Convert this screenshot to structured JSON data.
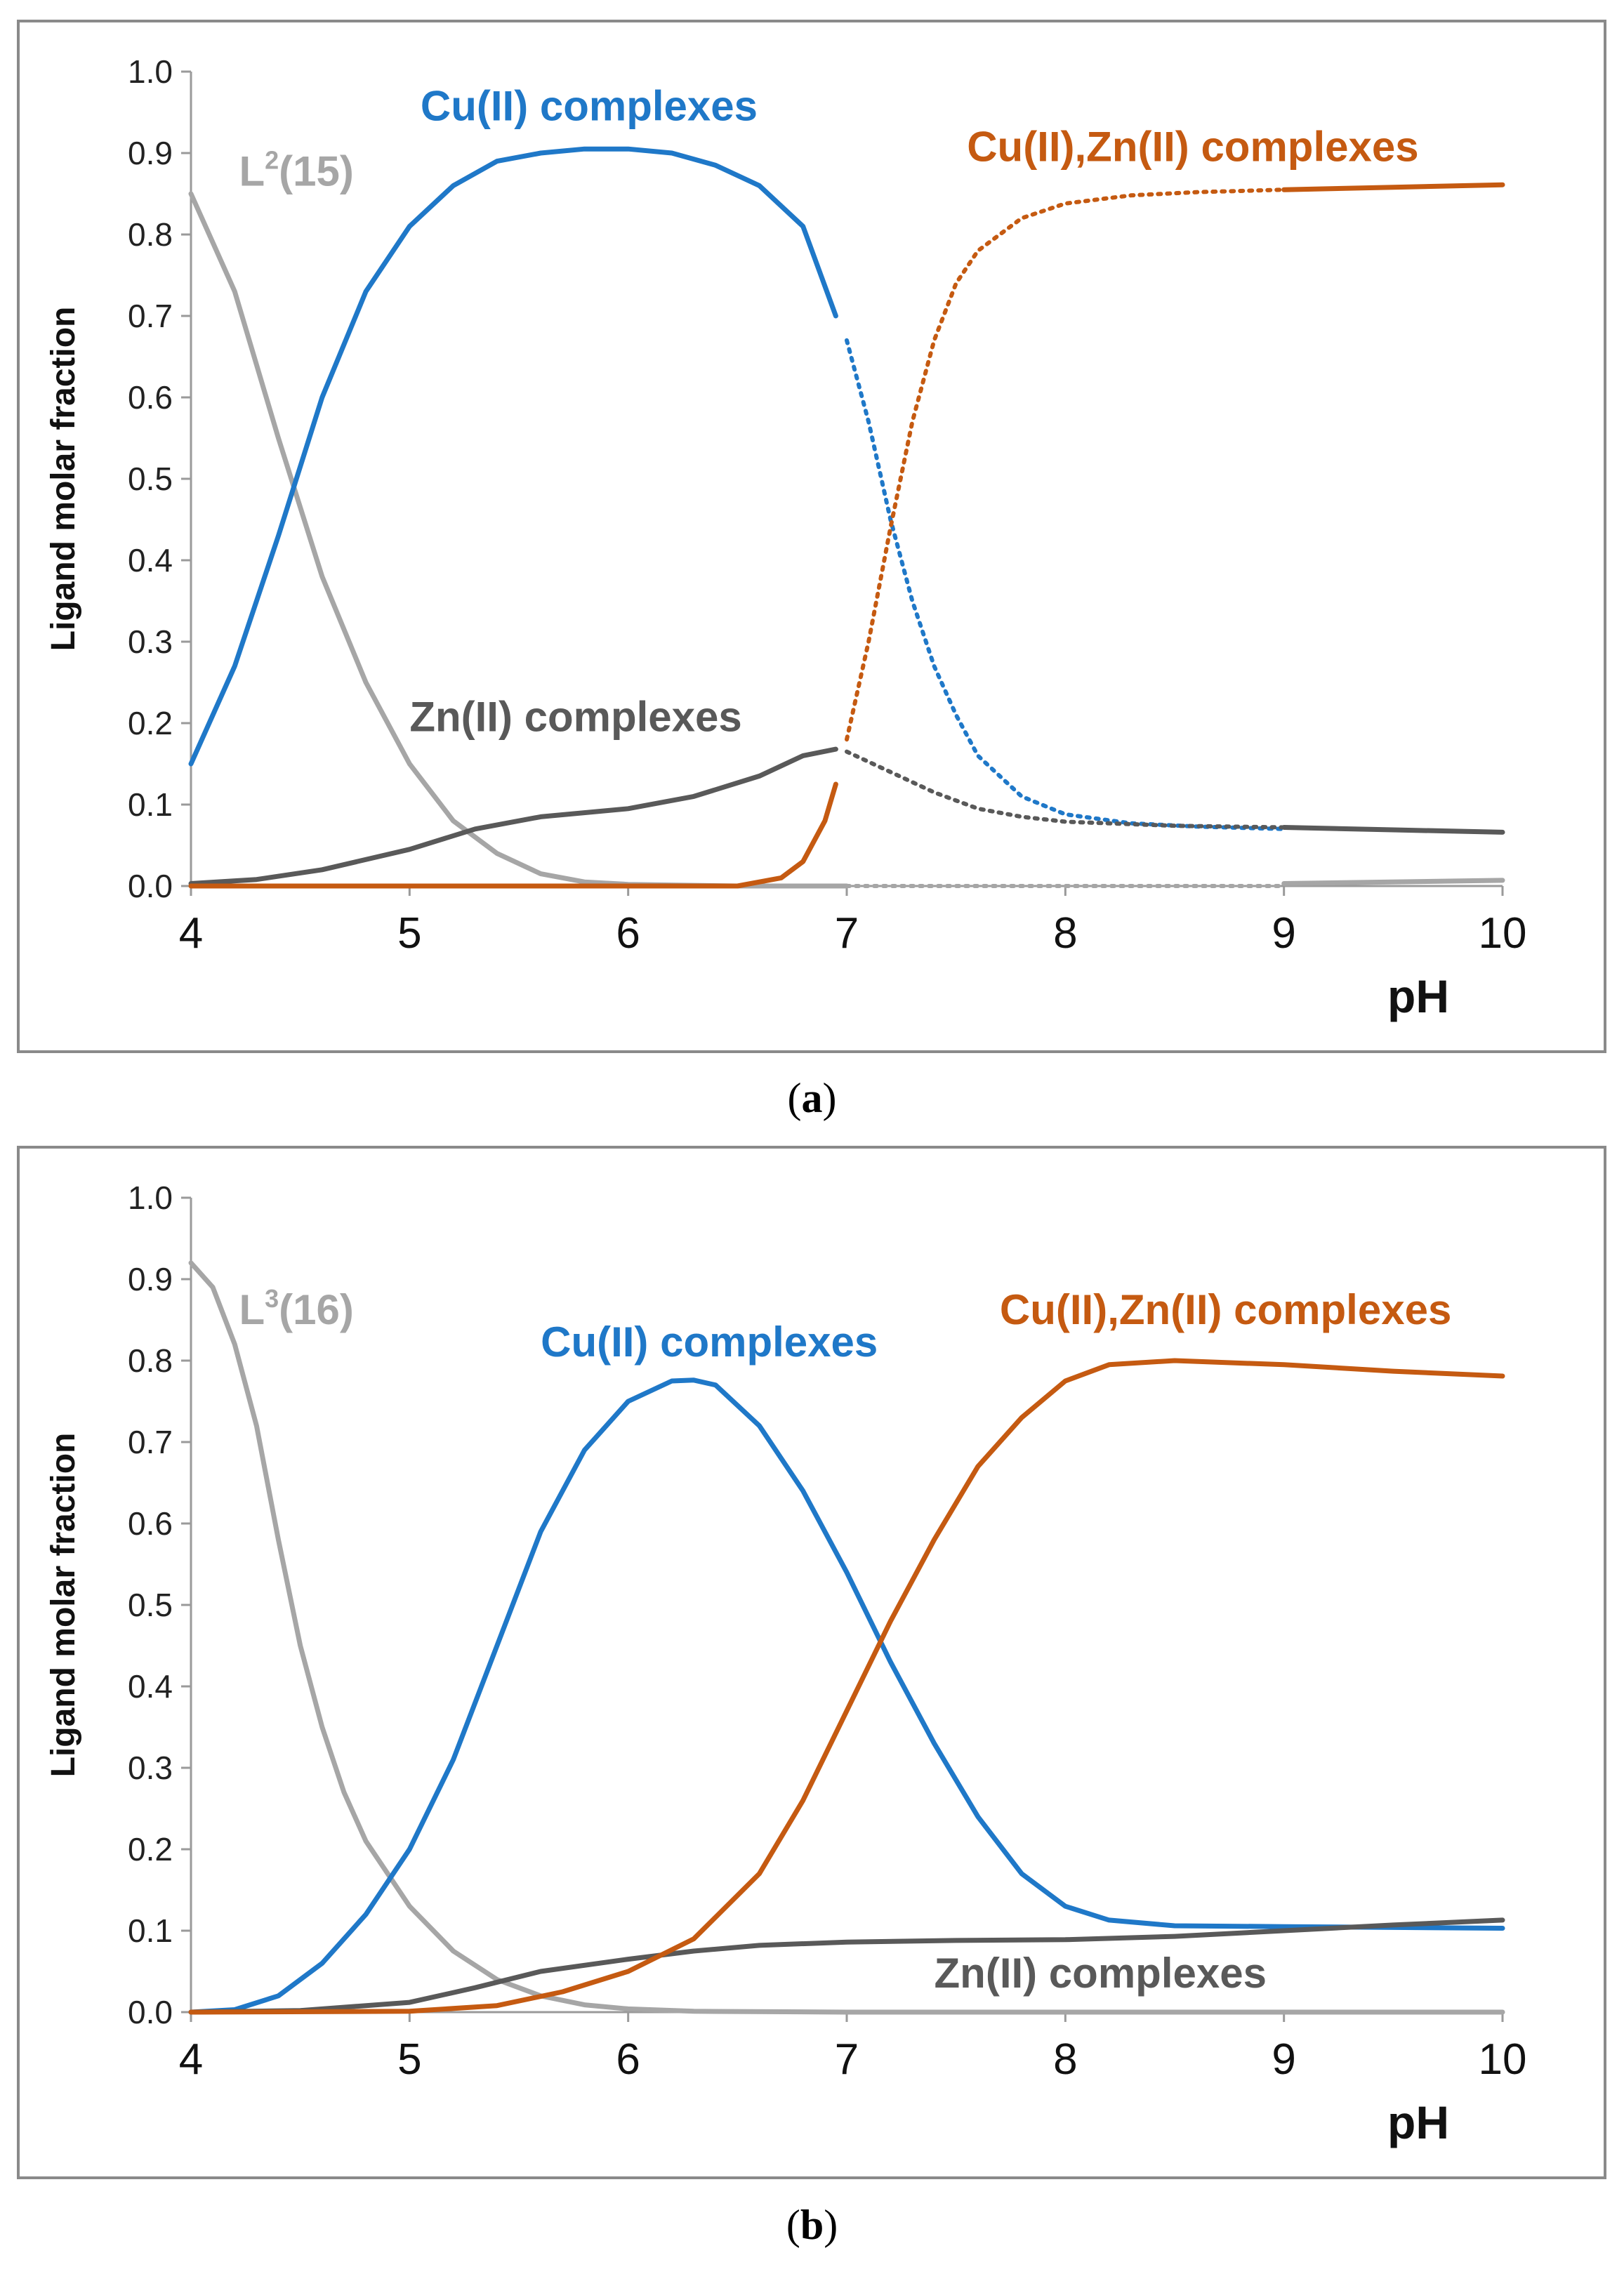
{
  "chart_data": [
    {
      "panel": "a",
      "caption": "a",
      "type": "line",
      "xlabel": "pH",
      "ylabel": "Ligand molar fraction",
      "xlim": [
        4,
        10
      ],
      "ylim": [
        0,
        1
      ],
      "x_ticks": [
        "4",
        "5",
        "6",
        "7",
        "8",
        "9",
        "10"
      ],
      "y_ticks": [
        "0.0",
        "0.1",
        "0.2",
        "0.3",
        "0.4",
        "0.5",
        "0.6",
        "0.7",
        "0.8",
        "0.9",
        "1.0"
      ],
      "series": [
        {
          "name": "L2(15)",
          "label_main": "L",
          "label_sup": "2",
          "label_rest": "(15)",
          "color": "#a6a6a6",
          "solid": [
            [
              4.0,
              0.85
            ],
            [
              4.2,
              0.73
            ],
            [
              4.4,
              0.55
            ],
            [
              4.6,
              0.38
            ],
            [
              4.8,
              0.25
            ],
            [
              5.0,
              0.15
            ],
            [
              5.2,
              0.08
            ],
            [
              5.4,
              0.04
            ],
            [
              5.6,
              0.015
            ],
            [
              5.8,
              0.005
            ],
            [
              6.0,
              0.002
            ],
            [
              6.5,
              0.0
            ],
            [
              7.0,
              0.0
            ]
          ],
          "dotted": [
            [
              7.0,
              0.0
            ],
            [
              9.0,
              0.0
            ]
          ],
          "solid_end": [
            [
              9.0,
              0.003
            ],
            [
              10.0,
              0.007
            ]
          ]
        },
        {
          "name": "Cu(II) complexes",
          "label_main": "Cu(II) complexes",
          "label_sup": "",
          "label_rest": "",
          "color": "#1f78c8",
          "solid": [
            [
              4.0,
              0.15
            ],
            [
              4.2,
              0.27
            ],
            [
              4.4,
              0.43
            ],
            [
              4.6,
              0.6
            ],
            [
              4.8,
              0.73
            ],
            [
              5.0,
              0.81
            ],
            [
              5.2,
              0.86
            ],
            [
              5.4,
              0.89
            ],
            [
              5.6,
              0.9
            ],
            [
              5.8,
              0.905
            ],
            [
              6.0,
              0.905
            ],
            [
              6.2,
              0.9
            ],
            [
              6.4,
              0.885
            ],
            [
              6.6,
              0.86
            ],
            [
              6.8,
              0.81
            ],
            [
              6.95,
              0.7
            ]
          ],
          "dotted": [
            [
              7.0,
              0.67
            ],
            [
              7.1,
              0.57
            ],
            [
              7.2,
              0.45
            ],
            [
              7.3,
              0.35
            ],
            [
              7.4,
              0.27
            ],
            [
              7.5,
              0.21
            ],
            [
              7.6,
              0.16
            ],
            [
              7.8,
              0.11
            ],
            [
              8.0,
              0.088
            ],
            [
              8.3,
              0.077
            ],
            [
              8.6,
              0.073
            ],
            [
              9.0,
              0.07
            ]
          ],
          "solid_end": []
        },
        {
          "name": "Zn(II) complexes",
          "label_main": "Zn(II) complexes",
          "label_sup": "",
          "label_rest": "",
          "color": "#595959",
          "solid": [
            [
              4.0,
              0.003
            ],
            [
              4.3,
              0.008
            ],
            [
              4.6,
              0.02
            ],
            [
              5.0,
              0.045
            ],
            [
              5.3,
              0.07
            ],
            [
              5.6,
              0.085
            ],
            [
              6.0,
              0.095
            ],
            [
              6.3,
              0.11
            ],
            [
              6.6,
              0.135
            ],
            [
              6.8,
              0.16
            ],
            [
              6.95,
              0.168
            ]
          ],
          "dotted": [
            [
              7.0,
              0.165
            ],
            [
              7.2,
              0.14
            ],
            [
              7.4,
              0.115
            ],
            [
              7.6,
              0.095
            ],
            [
              7.8,
              0.085
            ],
            [
              8.0,
              0.079
            ],
            [
              8.5,
              0.074
            ],
            [
              9.0,
              0.072
            ]
          ],
          "solid_end": [
            [
              9.0,
              0.072
            ],
            [
              9.5,
              0.069
            ],
            [
              10.0,
              0.066
            ]
          ]
        },
        {
          "name": "Cu(II),Zn(II) complexes",
          "label_main": "Cu(II),Zn(II) complexes",
          "label_sup": "",
          "label_rest": "",
          "color": "#c55a11",
          "solid": [
            [
              4.0,
              0.0
            ],
            [
              6.5,
              0.0
            ],
            [
              6.7,
              0.01
            ],
            [
              6.8,
              0.03
            ],
            [
              6.9,
              0.08
            ],
            [
              6.95,
              0.125
            ]
          ],
          "dotted": [
            [
              7.0,
              0.18
            ],
            [
              7.1,
              0.3
            ],
            [
              7.2,
              0.44
            ],
            [
              7.3,
              0.57
            ],
            [
              7.4,
              0.67
            ],
            [
              7.5,
              0.74
            ],
            [
              7.6,
              0.78
            ],
            [
              7.8,
              0.82
            ],
            [
              8.0,
              0.838
            ],
            [
              8.3,
              0.848
            ],
            [
              8.6,
              0.852
            ],
            [
              9.0,
              0.855
            ]
          ],
          "solid_end": [
            [
              9.0,
              0.855
            ],
            [
              9.5,
              0.858
            ],
            [
              10.0,
              0.861
            ]
          ]
        }
      ],
      "labels_at": [
        {
          "series": 0,
          "x": 4.22,
          "y": 0.86
        },
        {
          "series": 1,
          "x": 5.05,
          "y": 0.94
        },
        {
          "series": 2,
          "x": 5.0,
          "y": 0.19
        },
        {
          "series": 3,
          "x": 7.55,
          "y": 0.89
        }
      ]
    },
    {
      "panel": "b",
      "caption": "b",
      "type": "line",
      "xlabel": "pH",
      "ylabel": "Ligand molar fraction",
      "xlim": [
        4,
        10
      ],
      "ylim": [
        0,
        1
      ],
      "x_ticks": [
        "4",
        "5",
        "6",
        "7",
        "8",
        "9",
        "10"
      ],
      "y_ticks": [
        "0.0",
        "0.1",
        "0.2",
        "0.3",
        "0.4",
        "0.5",
        "0.6",
        "0.7",
        "0.8",
        "0.9",
        "1.0"
      ],
      "series": [
        {
          "name": "L3(16)",
          "label_main": "L",
          "label_sup": "3",
          "label_rest": "(16)",
          "color": "#a6a6a6",
          "solid": [
            [
              4.0,
              0.92
            ],
            [
              4.1,
              0.89
            ],
            [
              4.2,
              0.82
            ],
            [
              4.3,
              0.72
            ],
            [
              4.4,
              0.58
            ],
            [
              4.5,
              0.45
            ],
            [
              4.6,
              0.35
            ],
            [
              4.7,
              0.27
            ],
            [
              4.8,
              0.21
            ],
            [
              5.0,
              0.13
            ],
            [
              5.2,
              0.075
            ],
            [
              5.4,
              0.04
            ],
            [
              5.6,
              0.02
            ],
            [
              5.8,
              0.009
            ],
            [
              6.0,
              0.004
            ],
            [
              6.3,
              0.001
            ],
            [
              7.0,
              0.0
            ],
            [
              10.0,
              0.0
            ]
          ],
          "dotted": [],
          "solid_end": []
        },
        {
          "name": "Cu(II) complexes",
          "label_main": "Cu(II) complexes",
          "label_sup": "",
          "label_rest": "",
          "color": "#1f78c8",
          "solid": [
            [
              4.0,
              0.0
            ],
            [
              4.2,
              0.003
            ],
            [
              4.4,
              0.02
            ],
            [
              4.6,
              0.06
            ],
            [
              4.8,
              0.12
            ],
            [
              5.0,
              0.2
            ],
            [
              5.2,
              0.31
            ],
            [
              5.4,
              0.45
            ],
            [
              5.6,
              0.59
            ],
            [
              5.8,
              0.69
            ],
            [
              6.0,
              0.75
            ],
            [
              6.2,
              0.775
            ],
            [
              6.3,
              0.776
            ],
            [
              6.4,
              0.77
            ],
            [
              6.6,
              0.72
            ],
            [
              6.8,
              0.64
            ],
            [
              7.0,
              0.54
            ],
            [
              7.2,
              0.43
            ],
            [
              7.4,
              0.33
            ],
            [
              7.6,
              0.24
            ],
            [
              7.8,
              0.17
            ],
            [
              8.0,
              0.13
            ],
            [
              8.2,
              0.113
            ],
            [
              8.5,
              0.106
            ],
            [
              9.0,
              0.105
            ],
            [
              9.5,
              0.104
            ],
            [
              10.0,
              0.103
            ]
          ],
          "dotted": [],
          "solid_end": []
        },
        {
          "name": "Zn(II) complexes",
          "label_main": "Zn(II) complexes",
          "label_sup": "",
          "label_rest": "",
          "color": "#595959",
          "solid": [
            [
              4.0,
              0.0
            ],
            [
              4.5,
              0.002
            ],
            [
              5.0,
              0.012
            ],
            [
              5.3,
              0.03
            ],
            [
              5.6,
              0.05
            ],
            [
              6.0,
              0.065
            ],
            [
              6.3,
              0.075
            ],
            [
              6.6,
              0.082
            ],
            [
              7.0,
              0.086
            ],
            [
              7.5,
              0.088
            ],
            [
              8.0,
              0.089
            ],
            [
              8.5,
              0.093
            ],
            [
              9.0,
              0.1
            ],
            [
              9.5,
              0.107
            ],
            [
              10.0,
              0.113
            ]
          ],
          "dotted": [],
          "solid_end": []
        },
        {
          "name": "Cu(II),Zn(II) complexes",
          "label_main": "Cu(II),Zn(II) complexes",
          "label_sup": "",
          "label_rest": "",
          "color": "#c55a11",
          "solid": [
            [
              4.0,
              0.0
            ],
            [
              5.0,
              0.001
            ],
            [
              5.4,
              0.008
            ],
            [
              5.7,
              0.025
            ],
            [
              6.0,
              0.05
            ],
            [
              6.3,
              0.09
            ],
            [
              6.6,
              0.17
            ],
            [
              6.8,
              0.26
            ],
            [
              7.0,
              0.37
            ],
            [
              7.2,
              0.48
            ],
            [
              7.4,
              0.58
            ],
            [
              7.6,
              0.67
            ],
            [
              7.8,
              0.73
            ],
            [
              8.0,
              0.775
            ],
            [
              8.2,
              0.795
            ],
            [
              8.5,
              0.8
            ],
            [
              9.0,
              0.795
            ],
            [
              9.5,
              0.787
            ],
            [
              10.0,
              0.781
            ]
          ],
          "dotted": [],
          "solid_end": []
        }
      ],
      "labels_at": [
        {
          "series": 0,
          "x": 4.22,
          "y": 0.845
        },
        {
          "series": 1,
          "x": 5.6,
          "y": 0.805
        },
        {
          "series": 2,
          "x": 7.4,
          "y": 0.03
        },
        {
          "series": 3,
          "x": 7.7,
          "y": 0.845
        }
      ]
    }
  ]
}
